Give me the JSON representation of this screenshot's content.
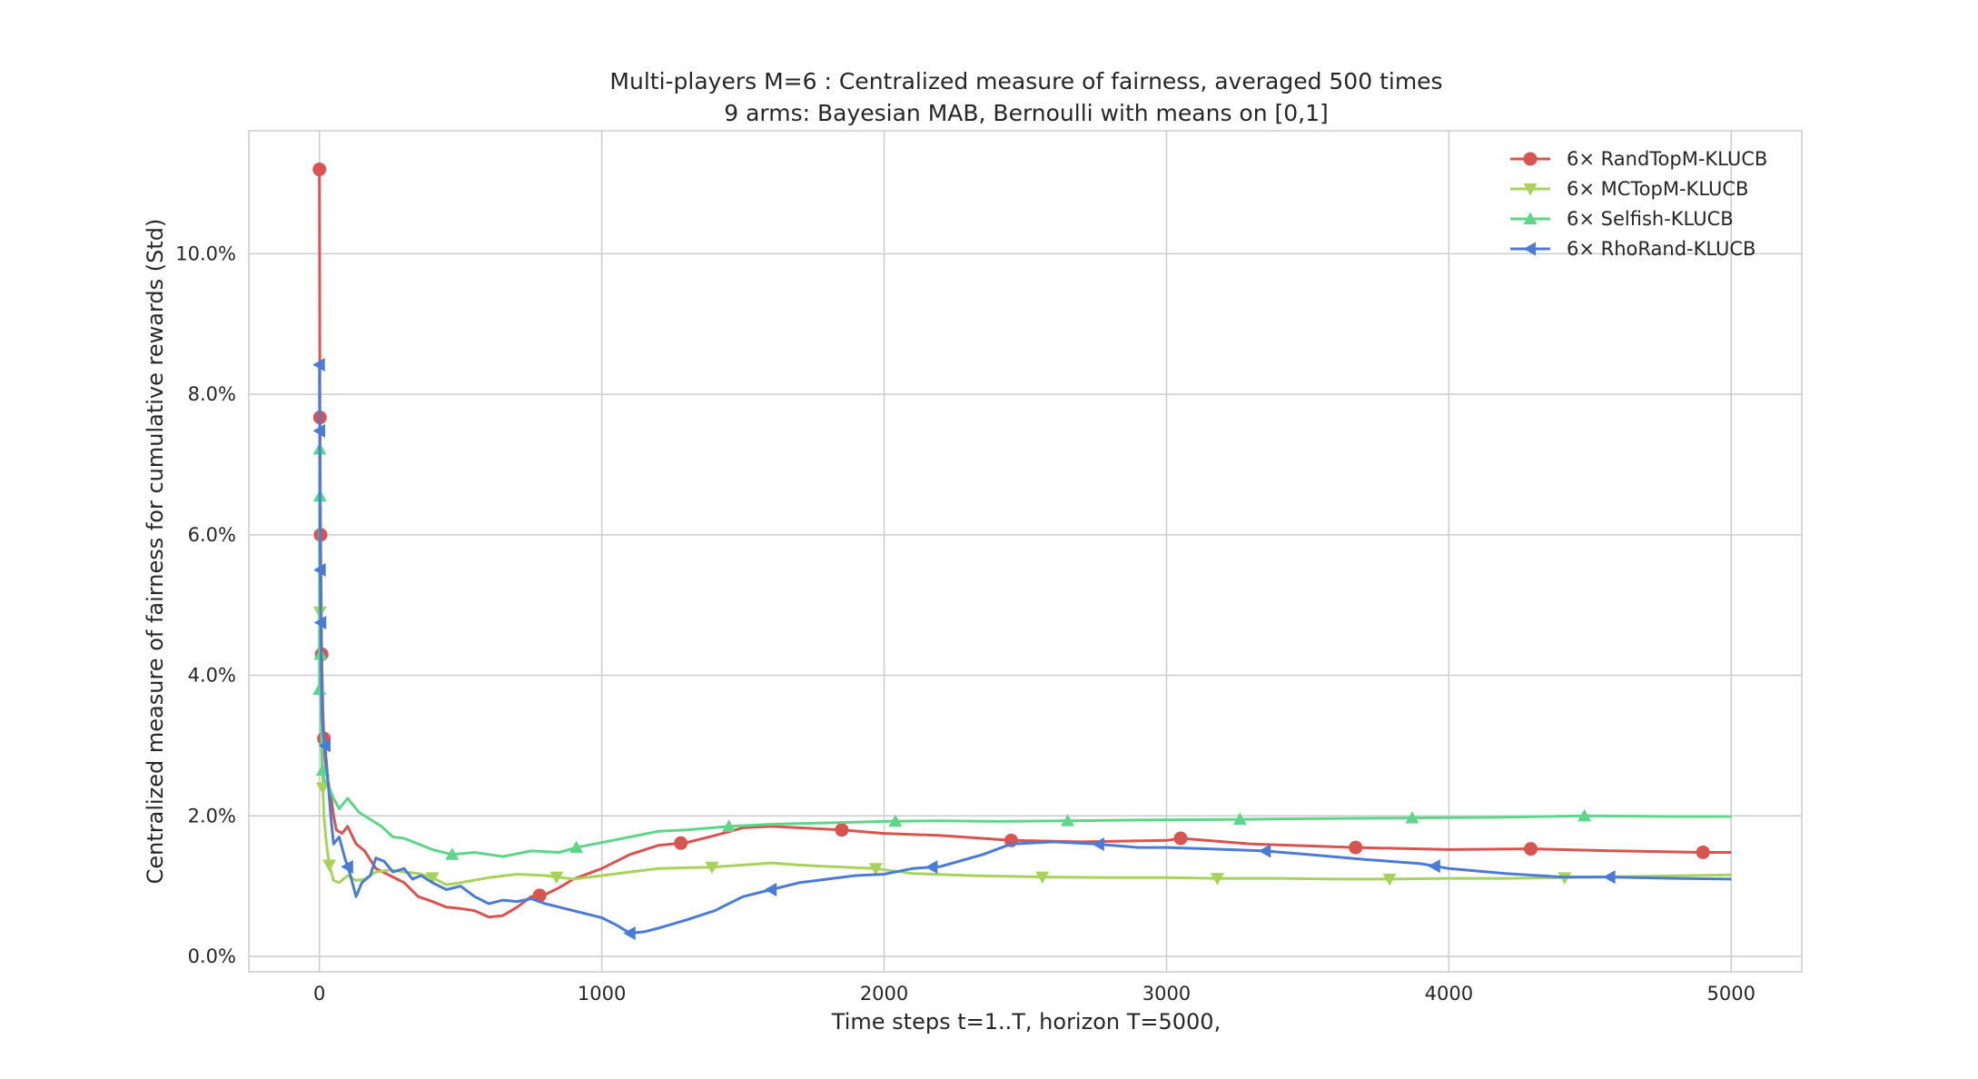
{
  "chart_data": {
    "type": "line",
    "title_line1": "Multi-players M=6 : Centralized measure of fairness, averaged 500 times",
    "title_line2": "9 arms: Bayesian MAB, Bernoulli with means on [0,1]",
    "xlabel": "Time steps t=1..T, horizon T=5000,",
    "ylabel": "Centralized measure of fairness for cumulative rewards (Std)",
    "xlim": [
      -250,
      5250
    ],
    "ylim": [
      -0.0022,
      0.1175
    ],
    "xticks": [
      0,
      1000,
      2000,
      3000,
      4000,
      5000
    ],
    "xtick_labels": [
      "0",
      "1000",
      "2000",
      "3000",
      "4000",
      "5000"
    ],
    "yticks": [
      0,
      0.02,
      0.04,
      0.06,
      0.08,
      0.1
    ],
    "ytick_labels": [
      "0.0%",
      "2.0%",
      "4.0%",
      "6.0%",
      "8.0%",
      "10.0%"
    ],
    "grid": true,
    "legend_position": "top-right",
    "series": [
      {
        "name": "6× RandTopM-KLUCB",
        "color": "#d9534f",
        "marker": "circle",
        "x": [
          0,
          2,
          4,
          8,
          12,
          16,
          20,
          30,
          40,
          50,
          60,
          80,
          100,
          130,
          160,
          200,
          250,
          300,
          350,
          400,
          450,
          500,
          550,
          600,
          650,
          700,
          750,
          800,
          850,
          900,
          1000,
          1100,
          1200,
          1300,
          1400,
          1500,
          1600,
          1700,
          1850,
          2000,
          2200,
          2450,
          2700,
          3000,
          3050,
          3300,
          3670,
          4000,
          4300,
          4600,
          4900,
          5000
        ],
        "y": [
          0.112,
          0.0767,
          0.06,
          0.043,
          0.035,
          0.031,
          0.028,
          0.025,
          0.023,
          0.02,
          0.018,
          0.0175,
          0.0185,
          0.016,
          0.015,
          0.0125,
          0.0115,
          0.0105,
          0.0085,
          0.0078,
          0.007,
          0.0068,
          0.0065,
          0.0056,
          0.0058,
          0.007,
          0.0085,
          0.0088,
          0.0098,
          0.011,
          0.0125,
          0.0145,
          0.0158,
          0.0162,
          0.0172,
          0.0183,
          0.0185,
          0.0183,
          0.018,
          0.0175,
          0.0172,
          0.0165,
          0.0163,
          0.0165,
          0.0168,
          0.016,
          0.0155,
          0.0152,
          0.0153,
          0.015,
          0.0148,
          0.0148
        ],
        "marker_x": [
          0,
          2,
          4,
          8,
          16,
          780,
          1280,
          1850,
          2450,
          3050,
          3670,
          4290,
          4900
        ]
      },
      {
        "name": "6× MCTopM-KLUCB",
        "color": "#a8d35a",
        "marker": "triangle-down",
        "x": [
          0,
          2,
          4,
          8,
          12,
          16,
          25,
          35,
          50,
          70,
          100,
          130,
          160,
          200,
          250,
          300,
          350,
          400,
          450,
          500,
          600,
          700,
          800,
          900,
          1000,
          1100,
          1200,
          1390,
          1500,
          1600,
          1700,
          1800,
          1970,
          2100,
          2300,
          2560,
          2800,
          3000,
          3180,
          3400,
          3600,
          3790,
          4000,
          4200,
          4410,
          4700,
          5000
        ],
        "y": [
          0.0435,
          0.049,
          0.04,
          0.03,
          0.024,
          0.02,
          0.016,
          0.013,
          0.0108,
          0.0105,
          0.0115,
          0.0108,
          0.011,
          0.012,
          0.0123,
          0.012,
          0.0118,
          0.0112,
          0.0102,
          0.0105,
          0.0112,
          0.0117,
          0.0115,
          0.011,
          0.0115,
          0.012,
          0.0125,
          0.0127,
          0.013,
          0.0133,
          0.013,
          0.0128,
          0.0125,
          0.0118,
          0.0115,
          0.0113,
          0.0112,
          0.0112,
          0.0111,
          0.0111,
          0.011,
          0.011,
          0.0111,
          0.0111,
          0.0112,
          0.0114,
          0.0116
        ],
        "marker_x": [
          2,
          12,
          35,
          400,
          840,
          1390,
          1970,
          2560,
          3180,
          3790,
          4410
        ]
      },
      {
        "name": "6× Selfish-KLUCB",
        "color": "#5dd68a",
        "marker": "triangle-up",
        "x": [
          0,
          1,
          2,
          3,
          4,
          6,
          8,
          10,
          14,
          18,
          25,
          35,
          50,
          70,
          100,
          140,
          180,
          220,
          260,
          300,
          350,
          400,
          470,
          550,
          650,
          750,
          850,
          910,
          1000,
          1100,
          1200,
          1300,
          1450,
          1600,
          1800,
          2000,
          2200,
          2400,
          2650,
          2900,
          3260,
          3500,
          3870,
          4200,
          4480,
          4800,
          5000
        ],
        "y": [
          0.038,
          0.0722,
          0.0655,
          0.0535,
          0.043,
          0.035,
          0.03,
          0.027,
          0.026,
          0.025,
          0.0248,
          0.024,
          0.0225,
          0.021,
          0.0225,
          0.0205,
          0.0195,
          0.0185,
          0.017,
          0.0168,
          0.016,
          0.0152,
          0.0145,
          0.0148,
          0.0142,
          0.015,
          0.0148,
          0.0155,
          0.0162,
          0.017,
          0.0178,
          0.018,
          0.0185,
          0.0188,
          0.019,
          0.0192,
          0.0193,
          0.0192,
          0.0193,
          0.0194,
          0.0195,
          0.0196,
          0.0197,
          0.0198,
          0.02,
          0.0199,
          0.0199
        ],
        "marker_x": [
          0,
          1,
          2,
          4,
          12,
          470,
          910,
          1450,
          2040,
          2650,
          3260,
          3870,
          4480
        ]
      },
      {
        "name": "6× RhoRand-KLUCB",
        "color": "#4a7bd6",
        "marker": "triangle-left",
        "x": [
          0,
          1,
          2,
          3,
          5,
          7,
          10,
          15,
          20,
          30,
          40,
          50,
          70,
          90,
          110,
          130,
          150,
          180,
          200,
          230,
          260,
          300,
          330,
          360,
          400,
          450,
          500,
          550,
          600,
          650,
          700,
          750,
          800,
          850,
          900,
          950,
          1000,
          1050,
          1100,
          1150,
          1200,
          1300,
          1400,
          1500,
          1600,
          1700,
          1800,
          1900,
          2000,
          2100,
          2200,
          2350,
          2450,
          2600,
          2750,
          2900,
          3000,
          3150,
          3350,
          3500,
          3700,
          3900,
          4000,
          4200,
          4400,
          4570,
          4800,
          5000
        ],
        "y": [
          0.0842,
          0.0748,
          0.0645,
          0.055,
          0.0475,
          0.04,
          0.034,
          0.0312,
          0.03,
          0.025,
          0.02,
          0.016,
          0.017,
          0.014,
          0.0115,
          0.0085,
          0.0105,
          0.0115,
          0.014,
          0.0135,
          0.012,
          0.0125,
          0.011,
          0.0115,
          0.0105,
          0.0095,
          0.01,
          0.0085,
          0.0075,
          0.008,
          0.0078,
          0.0082,
          0.0075,
          0.007,
          0.0065,
          0.006,
          0.0055,
          0.0045,
          0.0033,
          0.0035,
          0.004,
          0.0052,
          0.0065,
          0.0085,
          0.0095,
          0.0105,
          0.011,
          0.0115,
          0.0117,
          0.0125,
          0.0128,
          0.0145,
          0.016,
          0.0163,
          0.016,
          0.0155,
          0.0155,
          0.0153,
          0.015,
          0.0145,
          0.0138,
          0.0132,
          0.0125,
          0.0118,
          0.0113,
          0.0113,
          0.0111,
          0.011
        ],
        "marker_x": [
          0,
          1,
          3,
          5,
          20,
          100,
          1100,
          1600,
          2170,
          2760,
          3350,
          3950,
          4570
        ]
      }
    ]
  }
}
